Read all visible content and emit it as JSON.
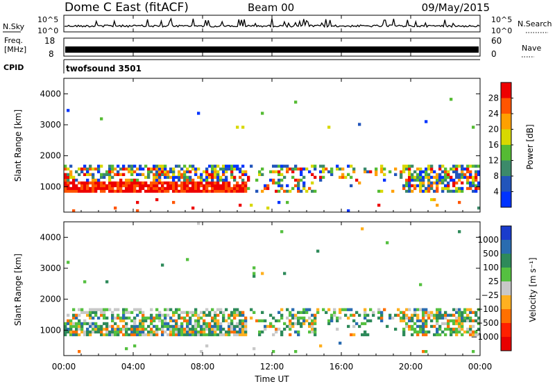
{
  "header": {
    "station": "Dome C East (fitACF)",
    "beam": "Beam 00",
    "date": "09/May/2015"
  },
  "params": {
    "nsky_label": "N.Sky",
    "nsky_ticks": [
      "10^5",
      "10^0"
    ],
    "nsearch_label": "N.Search",
    "freq_label_1": "Freq.",
    "freq_label_2": "[MHz]",
    "freq_ticks": [
      "18",
      "8"
    ],
    "nave_label": "Nave",
    "nave_ticks": [
      "60",
      "0"
    ],
    "cpid_label": "CPID",
    "cpid_value": "twofsound 3501"
  },
  "chart_data": [
    {
      "type": "heatmap",
      "name": "power",
      "ylabel": "Slant Range [km]",
      "yticks": [
        1000,
        2000,
        3000,
        4000
      ],
      "ylim": [
        180,
        4500
      ],
      "colorbar_label": "Power [dB]",
      "colorbar_ticks": [
        4,
        8,
        12,
        16,
        20,
        24,
        28
      ],
      "colorbar_range": [
        0,
        32
      ],
      "colors": [
        "#0033ff",
        "#2255bb",
        "#3c8a6a",
        "#55bb33",
        "#d8d800",
        "#ffa000",
        "#ff5500",
        "#ee0000"
      ]
    },
    {
      "type": "heatmap",
      "name": "velocity",
      "ylabel": "Slant Range [km]",
      "yticks": [
        1000,
        2000,
        3000,
        4000
      ],
      "ylim": [
        180,
        4500
      ],
      "colorbar_label": "Velocity [m s⁻¹]",
      "colorbar_ticks": [
        "1000",
        "500",
        "100",
        "25",
        "−25",
        "−100",
        "−500",
        "−1000"
      ],
      "colors": [
        "#1a3ccc",
        "#2a6cb0",
        "#2e8a5a",
        "#55c040",
        "#c8c8c8",
        "#ffb020",
        "#ff7000",
        "#ff2000",
        "#e80000"
      ]
    }
  ],
  "xaxis": {
    "label": "Time UT",
    "ticks": [
      "00:00",
      "04:00",
      "08:00",
      "12:00",
      "16:00",
      "20:00",
      "00:00"
    ],
    "range_hours": [
      0,
      24
    ]
  }
}
